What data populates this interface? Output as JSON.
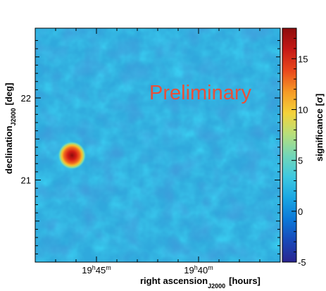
{
  "chart_data": {
    "type": "heatmap",
    "title": "",
    "watermark": "Preliminary",
    "xlabel": {
      "main": "right ascension",
      "subscript": "J2000",
      "unit": "[hours]"
    },
    "ylabel": {
      "main": "declination",
      "subscript": "J2000",
      "unit": "[deg]"
    },
    "colorbar_label": "significance [σ]",
    "x_axis": {
      "direction": "decreasing to the right",
      "ticks": [
        {
          "value": "19h45m",
          "hours": "19",
          "minutes": "45"
        },
        {
          "value": "19h40m",
          "hours": "19",
          "minutes": "40"
        }
      ]
    },
    "y_axis": {
      "range_deg": [
        20.0,
        22.85
      ],
      "ticks": [
        {
          "value": 21,
          "label": "21"
        },
        {
          "value": 22,
          "label": "22"
        }
      ]
    },
    "colorbar": {
      "range": [
        -5,
        18
      ],
      "ticks": [
        {
          "value": -5,
          "label": "-5"
        },
        {
          "value": 0,
          "label": "0"
        },
        {
          "value": 5,
          "label": "5"
        },
        {
          "value": 10,
          "label": "10"
        },
        {
          "value": 15,
          "label": "15"
        }
      ],
      "palette": [
        "#2a2490",
        "#1848b8",
        "#0c78d8",
        "#1aa6e2",
        "#3ec8e0",
        "#72d6b8",
        "#b6df7c",
        "#f4d23a",
        "#f69a25",
        "#e9481c",
        "#c51916",
        "#8e0c0c"
      ]
    },
    "background_significance": "approximately -1 to 2 σ",
    "hotspot": {
      "ra": "≈19h46.2m",
      "dec_deg": 21.3,
      "peak_significance": 17
    }
  }
}
